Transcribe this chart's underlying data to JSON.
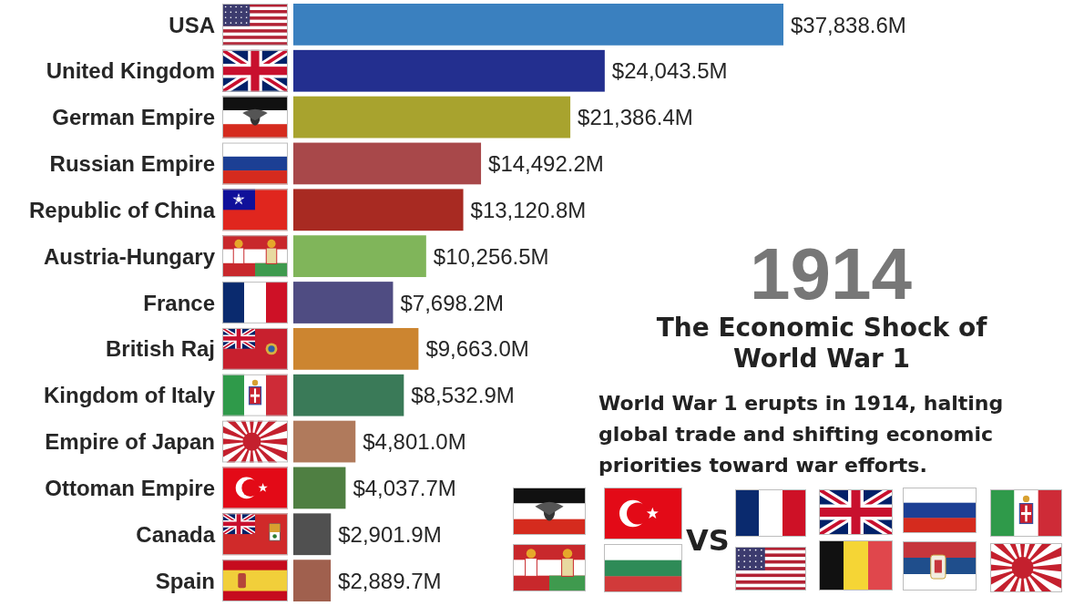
{
  "chart_data": {
    "type": "bar",
    "orientation": "horizontal",
    "title": "The Economic Shock of World War 1",
    "subtitle": "World War 1 erupts in 1914, halting global trade and shifting economic priorities toward war efforts.",
    "annotations": [
      "1914",
      "VS"
    ],
    "categories": [
      "USA",
      "United Kingdom",
      "German Empire",
      "Russian Empire",
      "Republic of China",
      "Austria-Hungary",
      "France",
      "British Raj",
      "Kingdom of Italy",
      "Empire of Japan",
      "Ottoman Empire",
      "Canada",
      "Spain"
    ],
    "values": [
      37838.6,
      24043.5,
      21386.4,
      14492.2,
      13120.8,
      10256.5,
      7698.2,
      9663.0,
      8532.9,
      4801.0,
      4037.7,
      2901.9,
      2889.7
    ],
    "colors": [
      "#3a80bf",
      "#232f8f",
      "#a8a32e",
      "#a8484a",
      "#a82a22",
      "#80b55a",
      "#4f4c82",
      "#cc8530",
      "#3a7a58",
      "#b07a5c",
      "#4f7f42",
      "#505050",
      "#a0604e"
    ],
    "value_labels": [
      "$37,838.6M",
      "$24,043.5M",
      "$21,386.4M",
      "$14,492.2M",
      "$13,120.8M",
      "$10,256.5M",
      "$7,698.2M",
      "$9,663.0M",
      "$8,532.9M",
      "$4,801.0M",
      "$4,037.7M",
      "$2,901.9M",
      "$2,889.7M"
    ]
  }
}
